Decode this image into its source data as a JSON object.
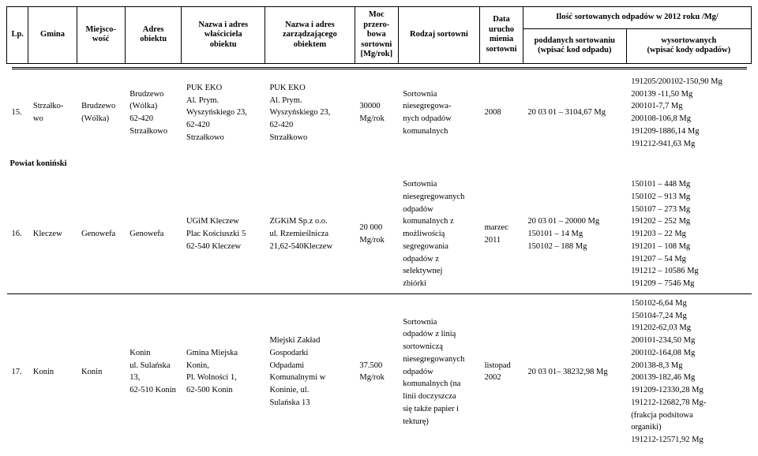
{
  "header": {
    "lp": "Lp.",
    "gmina": "Gmina",
    "miejscowosc": "Miejsco-\nwość",
    "adres_obiektu": "Adres\nobiektu",
    "nazwa_wlasciciela": "Nazwa i adres\nwłaściciela\nobiektu",
    "nazwa_zarzadzajacego": "Nazwa i adres\nzarządzającego\nobiektem",
    "moc_przerobowa": "Moc\nprzero-\nbowa\nsortowni\n[Mg/rok]",
    "rodzaj_sortowni": "Rodzaj sortowni",
    "data_urucho": "Data\nurucho\nmienia\nsortowni",
    "ilosc_top": "Ilość sortowanych odpadów w 2012 roku /Mg/",
    "poddanych": "poddanych sortowaniu\n(wpisać kod odpadu)",
    "wysortowanych": "wysortowanych\n(wpisać kody odpadów)"
  },
  "section_label": "Powiat koniński",
  "rows": [
    {
      "lp": "15.",
      "gmina": "Strzałko-\nwo",
      "miejscowosc": "Brudzewo\n(Wólka)",
      "adres": "Brudzewo\n(Wólka)\n62-420\nStrzałkowo",
      "wlasciciel": "PUK EKO\nAl. Prym.\nWyszyńskiego 23,\n62-420\nStrzałkowo",
      "zarzadzajacy": "PUK EKO\nAl. Prym.\nWyszyńskiego 23,\n62-420\nStrzałkowo",
      "moc": "30000\nMg/rok",
      "rodzaj": "Sortownia\nniesegregowa-\nnych odpadów\nkomunalnych",
      "data": "2008",
      "poddanych": "20 03 01 – 3104,67 Mg",
      "wysort": "191205/200102-150,90 Mg\n200139 -11,50 Mg\n200101-7,7 Mg\n200108-106,8 Mg\n191209-1886,14 Mg\n191212-941,63 Mg"
    },
    {
      "lp": "16.",
      "gmina": "Kleczew",
      "miejscowosc": "Genowefa",
      "adres": "Genowefa",
      "wlasciciel": "UGiM Kleczew\nPlac Kościuszki 5\n62-540 Kleczew",
      "zarzadzajacy": "ZGKiM Sp.z o.o.\nul. Rzemieślnicza\n21,62-540Kleczew",
      "moc": "20 000\nMg/rok",
      "rodzaj": "Sortownia\nniesegregowanych\nodpadów\nkomunalnych  z\nmożliwością\nsegregowania\nodpadów z\nselektywnej\nzbiórki",
      "data": "marzec\n2011",
      "poddanych": "20 03 01 – 20000 Mg\n150101 – 14 Mg\n150102 – 188 Mg",
      "wysort": "150101 – 448 Mg\n150102 – 913 Mg\n150107 – 273 Mg\n191202 – 252 Mg\n191203 – 22 Mg\n191201 – 108 Mg\n191207 – 54 Mg\n191212 – 10586 Mg\n191209 – 7546 Mg"
    },
    {
      "lp": "17.",
      "gmina": "Konin",
      "miejscowosc": "Konin",
      "adres": "Konin\nul. Sulańska\n13,\n62-510 Konin",
      "wlasciciel": "Gmina Miejska\nKonin,\nPl. Wolności 1,\n62-500 Konin",
      "zarzadzajacy": "Miejski Zakład\nGospodarki\nOdpadami\nKomunalnymi  w\nKoninie, ul.\nSulańska 13",
      "moc": "37.500\nMg/rok",
      "rodzaj": "Sortownia\nodpadów z linią\nsortowniczą\nniesegregowanych\nodpadów\nkomunalnych (na\nlinii doczyszcza\nsię także papier i\ntekturę)",
      "data": "listopad\n2002",
      "poddanych": "20 03 01– 38232,98 Mg",
      "wysort": "150102-6,64 Mg\n150104-7,24 Mg\n191202-62,03 Mg\n200101-234,50 Mg\n200102-164,08 Mg\n200138-8,3 Mg\n200139-182,46 Mg\n191209-12330,28 Mg\n191212-12682,78 Mg-\n(frakcja podsitowa\norganiki)\n191212-12571,92 Mg"
    }
  ]
}
